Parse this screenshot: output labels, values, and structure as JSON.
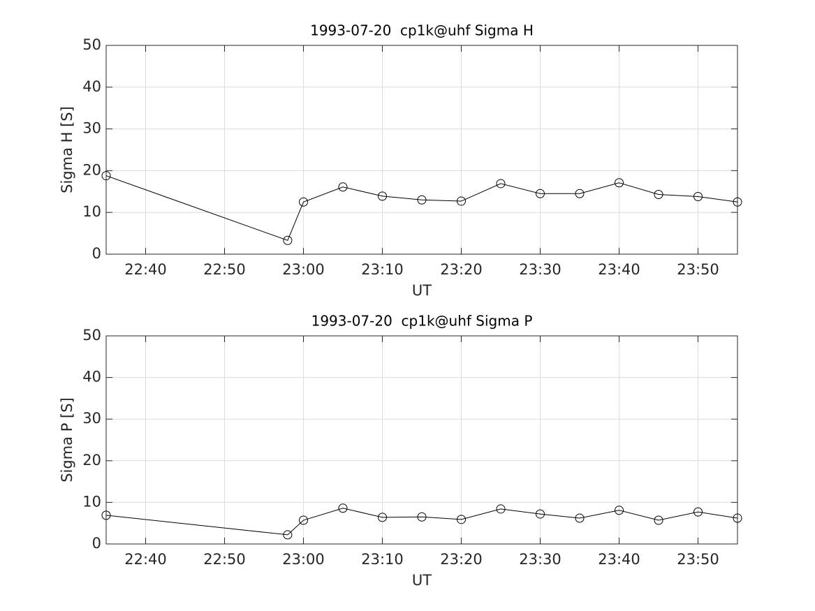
{
  "chart_data": [
    {
      "type": "line",
      "title": "1993-07-20  cp1k@uhf Sigma H",
      "xlabel": "UT",
      "ylabel": "Sigma H [S]",
      "x": [
        "22:35",
        "22:58",
        "23:00",
        "23:05",
        "23:10",
        "23:15",
        "23:20",
        "23:25",
        "23:30",
        "23:35",
        "23:40",
        "23:45",
        "23:50",
        "23:55"
      ],
      "values": [
        18.8,
        3.3,
        12.5,
        16.1,
        13.9,
        13.0,
        12.7,
        16.9,
        14.5,
        14.5,
        17.1,
        14.3,
        13.8,
        12.5
      ],
      "color": "#000000",
      "xlim": [
        "22:35",
        "23:55"
      ],
      "xticks": [
        "22:40",
        "22:50",
        "23:00",
        "23:10",
        "23:20",
        "23:30",
        "23:40",
        "23:50"
      ],
      "ylim": [
        0,
        50
      ],
      "yticks": [
        0,
        10,
        20,
        30,
        40,
        50
      ],
      "grid": true
    },
    {
      "type": "line",
      "title": "1993-07-20  cp1k@uhf Sigma P",
      "xlabel": "UT",
      "ylabel": "Sigma P [S]",
      "x": [
        "22:35",
        "22:58",
        "23:00",
        "23:05",
        "23:10",
        "23:15",
        "23:20",
        "23:25",
        "23:30",
        "23:35",
        "23:40",
        "23:45",
        "23:50",
        "23:55"
      ],
      "values": [
        6.9,
        2.2,
        5.7,
        8.6,
        6.4,
        6.5,
        5.9,
        8.4,
        7.2,
        6.2,
        8.1,
        5.7,
        7.7,
        6.2
      ],
      "color": "#000000",
      "xlim": [
        "22:35",
        "23:55"
      ],
      "xticks": [
        "22:40",
        "22:50",
        "23:00",
        "23:10",
        "23:20",
        "23:30",
        "23:40",
        "23:50"
      ],
      "ylim": [
        0,
        50
      ],
      "yticks": [
        0,
        10,
        20,
        30,
        40,
        50
      ],
      "grid": true
    }
  ]
}
